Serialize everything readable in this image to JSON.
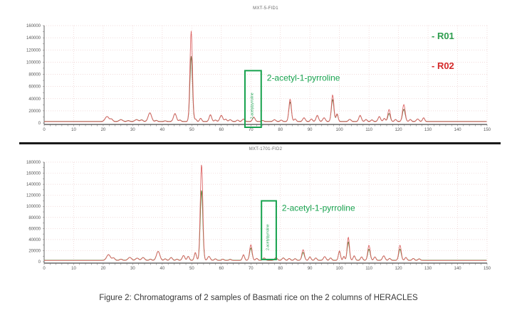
{
  "page": {
    "background": "#ffffff",
    "caption": "Figure 2: Chromatograms of 2 samples of Basmati rice on the 2 columns of HERACLES"
  },
  "legend": {
    "entries": [
      {
        "label": "- R01",
        "color": "#2e9e4f"
      },
      {
        "label": "- R02",
        "color": "#d42a2a"
      }
    ]
  },
  "chart_data": [
    {
      "type": "line",
      "title": "MXT-5-FID1",
      "xlabel": "",
      "ylabel": "",
      "xlim": [
        0,
        150
      ],
      "ylim": [
        0,
        160000
      ],
      "xtick_step": 10,
      "ytick_step": 20000,
      "x_minor_step": 2,
      "y_minor_step": 10000,
      "grid": true,
      "grid_color": "#edcfcf",
      "axis_color": "#666666",
      "label_color": "#555555",
      "annotation": {
        "label": "2-acetyl-1-pyrroline",
        "vertical_text": "2-acetylpyrroline",
        "color": "#17a24e",
        "box_x": [
          68,
          73.5
        ],
        "box_y": [
          -7000,
          86000
        ]
      },
      "series": [
        {
          "name": "R01",
          "color": "#6e683c",
          "baseline": 2700,
          "peaks": [
            [
              21.3,
              8000,
              0.9
            ],
            [
              22.8,
              3800,
              0.6
            ],
            [
              26,
              3000,
              0.8
            ],
            [
              28.5,
              1400,
              0.6
            ],
            [
              31.3,
              3000,
              0.8
            ],
            [
              33,
              2600,
              0.6
            ],
            [
              35.8,
              14000,
              0.8
            ],
            [
              38,
              1700,
              0.5
            ],
            [
              41,
              1100,
              0.5
            ],
            [
              44.3,
              12500,
              0.7
            ],
            [
              46,
              2300,
              0.5
            ],
            [
              49.8,
              107000,
              0.6
            ],
            [
              51.3,
              3600,
              0.45
            ],
            [
              53,
              5000,
              0.5
            ],
            [
              56.3,
              10500,
              0.6
            ],
            [
              58,
              2300,
              0.5
            ],
            [
              60,
              9500,
              0.7
            ],
            [
              61.5,
              3600,
              0.5
            ],
            [
              63,
              2900,
              0.6
            ],
            [
              65.5,
              2200,
              0.5
            ],
            [
              67.5,
              3800,
              0.6
            ],
            [
              71,
              6800,
              0.6
            ],
            [
              74,
              1600,
              0.5
            ],
            [
              78,
              2900,
              0.6
            ],
            [
              80.3,
              2200,
              0.5
            ],
            [
              83.3,
              32000,
              0.6
            ],
            [
              85,
              4000,
              0.5
            ],
            [
              88,
              5800,
              0.6
            ],
            [
              90.5,
              4000,
              0.5
            ],
            [
              92.5,
              9500,
              0.6
            ],
            [
              94.8,
              5800,
              0.6
            ],
            [
              97.7,
              36000,
              0.6
            ],
            [
              99.2,
              11000,
              0.5
            ],
            [
              103.5,
              3400,
              0.6
            ],
            [
              107,
              9500,
              0.6
            ],
            [
              109,
              3100,
              0.5
            ],
            [
              111,
              2500,
              0.5
            ],
            [
              113.5,
              7600,
              0.6
            ],
            [
              115.2,
              4900,
              0.5
            ],
            [
              116.8,
              13000,
              0.6
            ],
            [
              119,
              3100,
              0.5
            ],
            [
              121.8,
              20000,
              0.65
            ],
            [
              124,
              3100,
              0.5
            ],
            [
              126.5,
              4000,
              0.6
            ],
            [
              128.5,
              5800,
              0.5
            ]
          ]
        },
        {
          "name": "R02",
          "color": "#dd6666",
          "baseline": 2200,
          "peaks": [
            [
              21.3,
              8500,
              0.9
            ],
            [
              22.8,
              4000,
              0.6
            ],
            [
              26,
              3200,
              0.8
            ],
            [
              28.5,
              1500,
              0.6
            ],
            [
              31.3,
              3200,
              0.8
            ],
            [
              33,
              2800,
              0.6
            ],
            [
              35.8,
              14500,
              0.8
            ],
            [
              38,
              1800,
              0.5
            ],
            [
              41,
              1200,
              0.5
            ],
            [
              44.3,
              13500,
              0.7
            ],
            [
              46,
              2500,
              0.5
            ],
            [
              49.8,
              149000,
              0.6
            ],
            [
              51.3,
              4000,
              0.45
            ],
            [
              53,
              5500,
              0.5
            ],
            [
              56.3,
              11500,
              0.6
            ],
            [
              58,
              2500,
              0.5
            ],
            [
              60,
              10500,
              0.7
            ],
            [
              61.5,
              4000,
              0.5
            ],
            [
              63,
              3200,
              0.6
            ],
            [
              65.5,
              2500,
              0.5
            ],
            [
              67.5,
              4200,
              0.6
            ],
            [
              71,
              7500,
              0.6
            ],
            [
              74,
              1800,
              0.5
            ],
            [
              78,
              3200,
              0.6
            ],
            [
              80.3,
              2500,
              0.5
            ],
            [
              83.3,
              37000,
              0.6
            ],
            [
              85,
              4500,
              0.5
            ],
            [
              88,
              6500,
              0.6
            ],
            [
              90.5,
              4500,
              0.5
            ],
            [
              92.5,
              10500,
              0.6
            ],
            [
              94.8,
              6500,
              0.6
            ],
            [
              97.7,
              44000,
              0.6
            ],
            [
              99.2,
              13000,
              0.5
            ],
            [
              103.5,
              3800,
              0.6
            ],
            [
              107,
              10500,
              0.6
            ],
            [
              109,
              3500,
              0.5
            ],
            [
              111,
              2800,
              0.5
            ],
            [
              113.5,
              8500,
              0.6
            ],
            [
              115.2,
              5500,
              0.5
            ],
            [
              116.8,
              20000,
              0.6
            ],
            [
              119,
              3500,
              0.5
            ],
            [
              121.8,
              28000,
              0.65
            ],
            [
              124,
              3500,
              0.5
            ],
            [
              126.5,
              4500,
              0.6
            ],
            [
              128.5,
              6500,
              0.5
            ]
          ]
        }
      ]
    },
    {
      "type": "line",
      "title": "MXT-1701-FID2",
      "xlabel": "",
      "ylabel": "",
      "xlim": [
        0,
        150
      ],
      "ylim": [
        0,
        180000
      ],
      "xtick_step": 10,
      "ytick_step": 20000,
      "x_minor_step": 2,
      "y_minor_step": 10000,
      "grid": true,
      "grid_color": "#edcfcf",
      "axis_color": "#666666",
      "label_color": "#555555",
      "annotation": {
        "label": "2-acetyl-1-pyrroline",
        "vertical_text": "2-acetylpyrroline",
        "color": "#17a24e",
        "box_x": [
          73.6,
          78.6
        ],
        "box_y": [
          4000,
          110000
        ]
      },
      "series": [
        {
          "name": "R01",
          "color": "#5e8038",
          "baseline": 2700,
          "peaks": [
            [
              21.8,
              10000,
              0.9
            ],
            [
              23.5,
              4200,
              0.6
            ],
            [
              26,
              2000,
              0.6
            ],
            [
              29,
              5200,
              0.8
            ],
            [
              31.5,
              3900,
              0.7
            ],
            [
              33.5,
              4900,
              0.7
            ],
            [
              36,
              2000,
              0.5
            ],
            [
              38.6,
              16000,
              0.8
            ],
            [
              41,
              2600,
              0.5
            ],
            [
              43,
              4900,
              0.6
            ],
            [
              45,
              2000,
              0.5
            ],
            [
              47.2,
              8400,
              0.6
            ],
            [
              48.8,
              7000,
              0.5
            ],
            [
              51.2,
              13500,
              0.5
            ],
            [
              53.3,
              127000,
              0.6
            ],
            [
              55.8,
              7000,
              0.6
            ],
            [
              58,
              2600,
              0.5
            ],
            [
              60.5,
              2000,
              0.5
            ],
            [
              63,
              1700,
              0.5
            ],
            [
              67.5,
              9500,
              0.5
            ],
            [
              70,
              22000,
              0.6
            ],
            [
              72,
              3300,
              0.5
            ],
            [
              74.5,
              4200,
              0.6
            ],
            [
              78.5,
              4800,
              0.6
            ],
            [
              81,
              4200,
              0.6
            ],
            [
              83,
              3300,
              0.5
            ],
            [
              85,
              2900,
              0.5
            ],
            [
              87.7,
              14000,
              0.6
            ],
            [
              90,
              6000,
              0.5
            ],
            [
              92,
              4200,
              0.5
            ],
            [
              95,
              6400,
              0.6
            ],
            [
              97,
              4200,
              0.5
            ],
            [
              100,
              16000,
              0.5
            ],
            [
              101.5,
              7000,
              0.4
            ],
            [
              103,
              33000,
              0.55
            ],
            [
              105,
              7800,
              0.5
            ],
            [
              107.5,
              6000,
              0.5
            ],
            [
              110,
              20000,
              0.6
            ],
            [
              112,
              6000,
              0.5
            ],
            [
              115,
              7800,
              0.6
            ],
            [
              117,
              3300,
              0.5
            ],
            [
              120.5,
              20000,
              0.6
            ],
            [
              122.5,
              5000,
              0.5
            ],
            [
              125,
              3300,
              0.5
            ],
            [
              127,
              2600,
              0.5
            ]
          ]
        },
        {
          "name": "R02",
          "color": "#dd6666",
          "baseline": 2200,
          "peaks": [
            [
              21.8,
              10500,
              0.9
            ],
            [
              23.5,
              4500,
              0.6
            ],
            [
              26,
              2200,
              0.6
            ],
            [
              29,
              5500,
              0.8
            ],
            [
              31.5,
              4200,
              0.7
            ],
            [
              33.5,
              5200,
              0.7
            ],
            [
              36,
              2200,
              0.5
            ],
            [
              38.6,
              16500,
              0.8
            ],
            [
              41,
              2800,
              0.5
            ],
            [
              43,
              5200,
              0.6
            ],
            [
              45,
              2200,
              0.5
            ],
            [
              47.2,
              9000,
              0.6
            ],
            [
              48.8,
              7500,
              0.5
            ],
            [
              51.2,
              14500,
              0.5
            ],
            [
              53.3,
              174000,
              0.6
            ],
            [
              55.8,
              7500,
              0.6
            ],
            [
              58,
              2800,
              0.5
            ],
            [
              60.5,
              2200,
              0.5
            ],
            [
              63,
              1800,
              0.5
            ],
            [
              67.5,
              10500,
              0.5
            ],
            [
              70,
              28500,
              0.6
            ],
            [
              72,
              3600,
              0.5
            ],
            [
              74.5,
              4500,
              0.6
            ],
            [
              78.5,
              5200,
              0.6
            ],
            [
              81,
              4500,
              0.6
            ],
            [
              83,
              3600,
              0.5
            ],
            [
              85,
              3200,
              0.5
            ],
            [
              87.7,
              19500,
              0.6
            ],
            [
              90,
              6500,
              0.5
            ],
            [
              92,
              4500,
              0.5
            ],
            [
              95,
              7000,
              0.6
            ],
            [
              97,
              4500,
              0.5
            ],
            [
              100,
              17500,
              0.5
            ],
            [
              101.5,
              7500,
              0.4
            ],
            [
              103,
              42000,
              0.55
            ],
            [
              105,
              8500,
              0.5
            ],
            [
              107.5,
              6500,
              0.5
            ],
            [
              110,
              27500,
              0.6
            ],
            [
              112,
              6500,
              0.5
            ],
            [
              115,
              8500,
              0.6
            ],
            [
              117,
              3600,
              0.5
            ],
            [
              120.5,
              27500,
              0.6
            ],
            [
              122.5,
              5500,
              0.5
            ],
            [
              125,
              3600,
              0.5
            ],
            [
              127,
              2800,
              0.5
            ]
          ]
        }
      ]
    }
  ]
}
